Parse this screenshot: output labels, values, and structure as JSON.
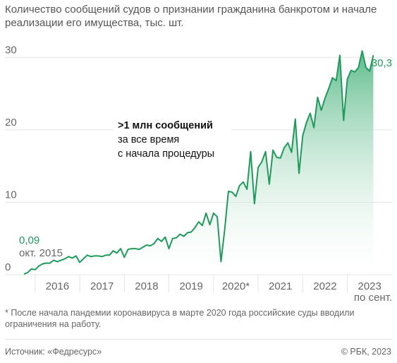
{
  "title": "Количество сообщений судов о признании гражданина банкротом и начале реализации его имущества, тыс. шт.",
  "annotation": {
    "bold": ">1 млн сообщений",
    "line1": "за все время",
    "line2": "с начала процедуры"
  },
  "note": "* После начала пандемии коронавируса в марте 2020 года российские суды вводили ограничения на работу.",
  "source": "Источник: «Федресурс»",
  "credit": "© РБК, 2023",
  "chart_data": {
    "type": "area",
    "title": "Количество сообщений судов о признании гражданина банкротом и начале реализации его имущества, тыс. шт.",
    "xlabel": "",
    "ylabel": "",
    "ylim": [
      0,
      35
    ],
    "yticks": [
      0,
      10,
      20,
      30
    ],
    "xlim": [
      2015.75,
      2023.75
    ],
    "xticks": [
      {
        "x": 2016.5,
        "label": "2016"
      },
      {
        "x": 2017.5,
        "label": "2017"
      },
      {
        "x": 2018.5,
        "label": "2018"
      },
      {
        "x": 2019.5,
        "label": "2019"
      },
      {
        "x": 2020.5,
        "label": "2020*"
      },
      {
        "x": 2021.5,
        "label": "2021"
      },
      {
        "x": 2022.5,
        "label": "2022"
      },
      {
        "x": 2023.5,
        "label": "2023"
      }
    ],
    "grid": true,
    "colors": {
      "line": "#1f9a5b",
      "fill_top": "#5fbc8c",
      "fill_bottom": "#ffffff",
      "grid": "#e3e3e3",
      "label_green": "#1f9a5b"
    },
    "start_label": {
      "value": "0,09",
      "sub": "окт. 2015"
    },
    "end_label": {
      "value": "30,3",
      "sub": "по сент."
    },
    "series": [
      {
        "values": [
          [
            2015.75,
            0.09
          ],
          [
            2015.833,
            0.3
          ],
          [
            2015.917,
            0.8
          ],
          [
            2016.0,
            0.7
          ],
          [
            2016.083,
            1.2
          ],
          [
            2016.167,
            1.5
          ],
          [
            2016.25,
            1.6
          ],
          [
            2016.333,
            1.6
          ],
          [
            2016.417,
            2.0
          ],
          [
            2016.5,
            1.8
          ],
          [
            2016.583,
            2.0
          ],
          [
            2016.667,
            2.2
          ],
          [
            2016.75,
            2.5
          ],
          [
            2016.833,
            2.3
          ],
          [
            2016.917,
            2.6
          ],
          [
            2017.0,
            1.7
          ],
          [
            2017.083,
            2.2
          ],
          [
            2017.167,
            2.7
          ],
          [
            2017.25,
            2.5
          ],
          [
            2017.333,
            2.6
          ],
          [
            2017.417,
            2.6
          ],
          [
            2017.5,
            2.5
          ],
          [
            2017.583,
            2.7
          ],
          [
            2017.667,
            2.7
          ],
          [
            2017.75,
            3.3
          ],
          [
            2017.833,
            3.0
          ],
          [
            2017.917,
            3.6
          ],
          [
            2018.0,
            2.4
          ],
          [
            2018.083,
            3.5
          ],
          [
            2018.167,
            3.6
          ],
          [
            2018.25,
            3.6
          ],
          [
            2018.333,
            3.5
          ],
          [
            2018.417,
            3.8
          ],
          [
            2018.5,
            4.1
          ],
          [
            2018.583,
            4.0
          ],
          [
            2018.667,
            4.3
          ],
          [
            2018.75,
            5.0
          ],
          [
            2018.833,
            4.6
          ],
          [
            2018.917,
            5.2
          ],
          [
            2019.0,
            3.6
          ],
          [
            2019.083,
            5.0
          ],
          [
            2019.167,
            5.1
          ],
          [
            2019.25,
            5.6
          ],
          [
            2019.333,
            5.3
          ],
          [
            2019.417,
            5.8
          ],
          [
            2019.5,
            5.9
          ],
          [
            2019.583,
            6.5
          ],
          [
            2019.667,
            7.3
          ],
          [
            2019.75,
            6.8
          ],
          [
            2019.833,
            8.5
          ],
          [
            2019.917,
            6.9
          ],
          [
            2020.0,
            8.5
          ],
          [
            2020.083,
            8.0
          ],
          [
            2020.167,
            1.8
          ],
          [
            2020.25,
            6.2
          ],
          [
            2020.333,
            11.5
          ],
          [
            2020.417,
            11.4
          ],
          [
            2020.5,
            10.8
          ],
          [
            2020.583,
            12.3
          ],
          [
            2020.667,
            12.8
          ],
          [
            2020.75,
            11.8
          ],
          [
            2020.833,
            17.0
          ],
          [
            2020.917,
            9.8
          ],
          [
            2021.0,
            14.8
          ],
          [
            2021.083,
            15.6
          ],
          [
            2021.167,
            17.0
          ],
          [
            2021.25,
            12.5
          ],
          [
            2021.333,
            17.2
          ],
          [
            2021.417,
            16.2
          ],
          [
            2021.5,
            16.1
          ],
          [
            2021.583,
            17.5
          ],
          [
            2021.667,
            18.2
          ],
          [
            2021.75,
            16.9
          ],
          [
            2021.833,
            21.5
          ],
          [
            2021.917,
            14.0
          ],
          [
            2022.0,
            19.2
          ],
          [
            2022.083,
            21.0
          ],
          [
            2022.167,
            22.3
          ],
          [
            2022.25,
            20.3
          ],
          [
            2022.333,
            24.5
          ],
          [
            2022.417,
            22.7
          ],
          [
            2022.5,
            24.4
          ],
          [
            2022.583,
            25.7
          ],
          [
            2022.667,
            27.2
          ],
          [
            2022.75,
            26.8
          ],
          [
            2022.833,
            30.3
          ],
          [
            2022.917,
            21.3
          ],
          [
            2023.0,
            27.0
          ],
          [
            2023.083,
            28.2
          ],
          [
            2023.167,
            28.0
          ],
          [
            2023.25,
            28.6
          ],
          [
            2023.333,
            30.9
          ],
          [
            2023.417,
            28.6
          ],
          [
            2023.5,
            28.1
          ],
          [
            2023.583,
            30.3
          ]
        ]
      }
    ]
  }
}
